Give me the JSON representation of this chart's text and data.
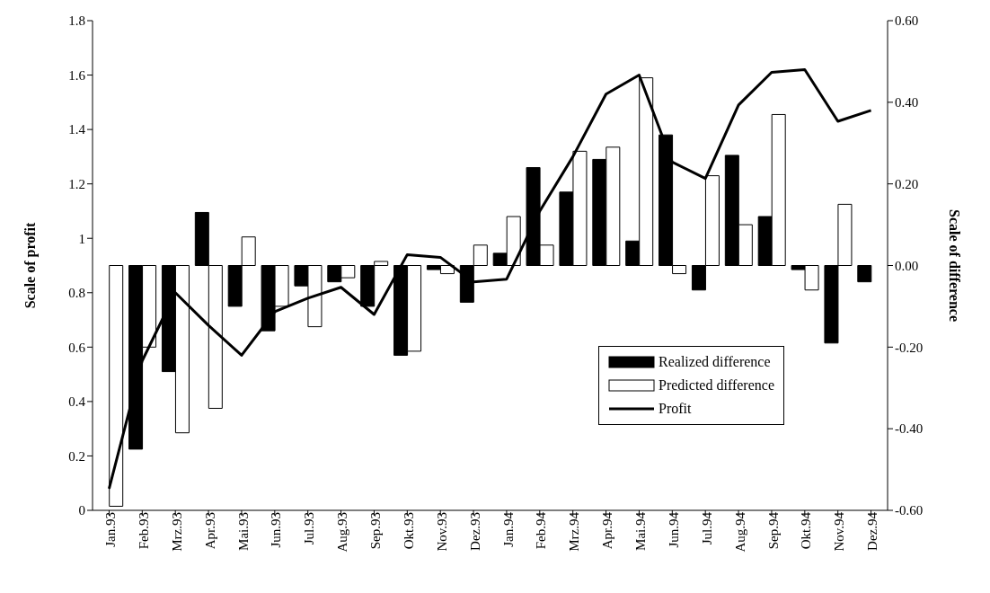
{
  "chart_data": {
    "type": "bar",
    "xlabel": null,
    "ylabel": "Scale of profit",
    "y2label": "Scale of difference",
    "categories": [
      "Jan.93",
      "Feb.93",
      "Mrz.93",
      "Apr.93",
      "Mai.93",
      "Jun.93",
      "Jul.93",
      "Aug.93",
      "Sep.93",
      "Okt.93",
      "Nov.93",
      "Dez.93",
      "Jan.94",
      "Feb.94",
      "Mrz.94",
      "Apr.94",
      "Mai.94",
      "Jun.94",
      "Jul.94",
      "Aug.94",
      "Sep.94",
      "Okt.94",
      "Nov.94",
      "Dez.94"
    ],
    "series": [
      {
        "name": "Realized difference",
        "axis": "y2",
        "color": "#000000",
        "values": [
          null,
          -0.45,
          -0.26,
          0.13,
          -0.1,
          -0.16,
          -0.05,
          -0.04,
          -0.1,
          -0.22,
          -0.01,
          -0.09,
          0.03,
          0.24,
          0.18,
          0.26,
          0.06,
          0.32,
          -0.06,
          0.27,
          0.12,
          -0.01,
          -0.19,
          -0.04
        ]
      },
      {
        "name": "Predicted difference",
        "axis": "y2",
        "color": "#ffffff",
        "values": [
          -0.59,
          -0.2,
          -0.41,
          -0.35,
          0.07,
          -0.1,
          -0.15,
          -0.03,
          0.01,
          -0.21,
          -0.02,
          0.05,
          0.12,
          0.05,
          0.28,
          0.29,
          0.46,
          -0.02,
          0.22,
          0.1,
          0.37,
          -0.06,
          0.15,
          null
        ]
      },
      {
        "name": "Profit",
        "type": "line",
        "color": "#000000",
        "values": [
          0.08,
          0.55,
          0.8,
          0.68,
          0.57,
          0.73,
          0.78,
          0.82,
          0.72,
          0.94,
          0.93,
          0.84,
          0.85,
          1.1,
          1.3,
          1.53,
          1.6,
          1.28,
          1.22,
          1.49,
          1.61,
          1.62,
          1.43,
          1.47
        ]
      }
    ],
    "ylim": [
      0,
      1.8
    ],
    "yticks": [
      0,
      0.2,
      0.4,
      0.6,
      0.8,
      1,
      1.2,
      1.4,
      1.6,
      1.8
    ],
    "y2lim": [
      -0.6,
      0.6
    ],
    "y2ticks": [
      {
        "value": -0.6,
        "label": "-0.60"
      },
      {
        "value": -0.4,
        "label": "-0.40"
      },
      {
        "value": -0.2,
        "label": "-0.20"
      },
      {
        "value": 0,
        "label": "0.00"
      },
      {
        "value": 0.2,
        "label": "0.20"
      },
      {
        "value": 0.4,
        "label": "0.40"
      },
      {
        "value": 0.6,
        "label": "0.60"
      }
    ],
    "grid": false,
    "legend": "bottom right",
    "marker": "none",
    "line_style": "solid"
  }
}
